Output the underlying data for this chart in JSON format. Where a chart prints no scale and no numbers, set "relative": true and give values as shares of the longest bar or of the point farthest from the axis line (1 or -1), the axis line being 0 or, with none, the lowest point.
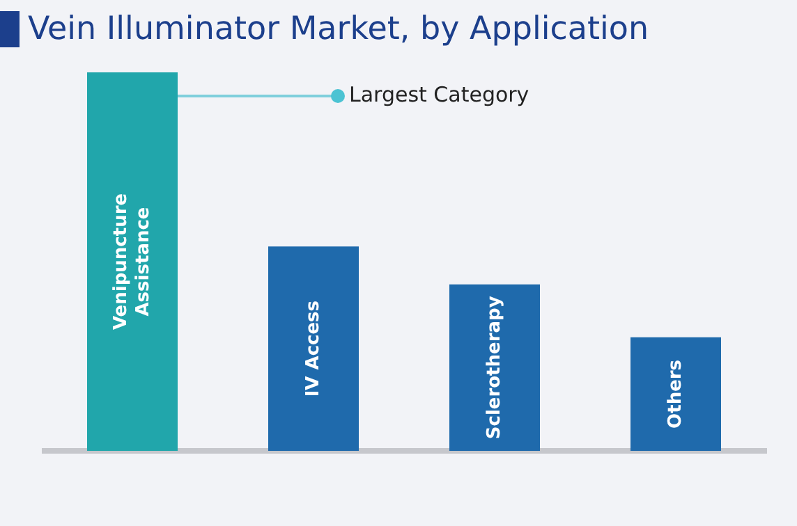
{
  "chart_data": {
    "type": "bar",
    "title": "Vein Illuminator Market, by Application",
    "categories": [
      "Venipuncture Assistance",
      "IV Access",
      "Sclerotherapy",
      "Others"
    ],
    "values": [
      1,
      0.54,
      0.44,
      0.3
    ],
    "colors": [
      "#21a6ab",
      "#1f6aac",
      "#1f6aac",
      "#1f6aac"
    ],
    "relative": true,
    "grid": false,
    "legend": false,
    "annotations": [
      "Largest Category"
    ]
  }
}
